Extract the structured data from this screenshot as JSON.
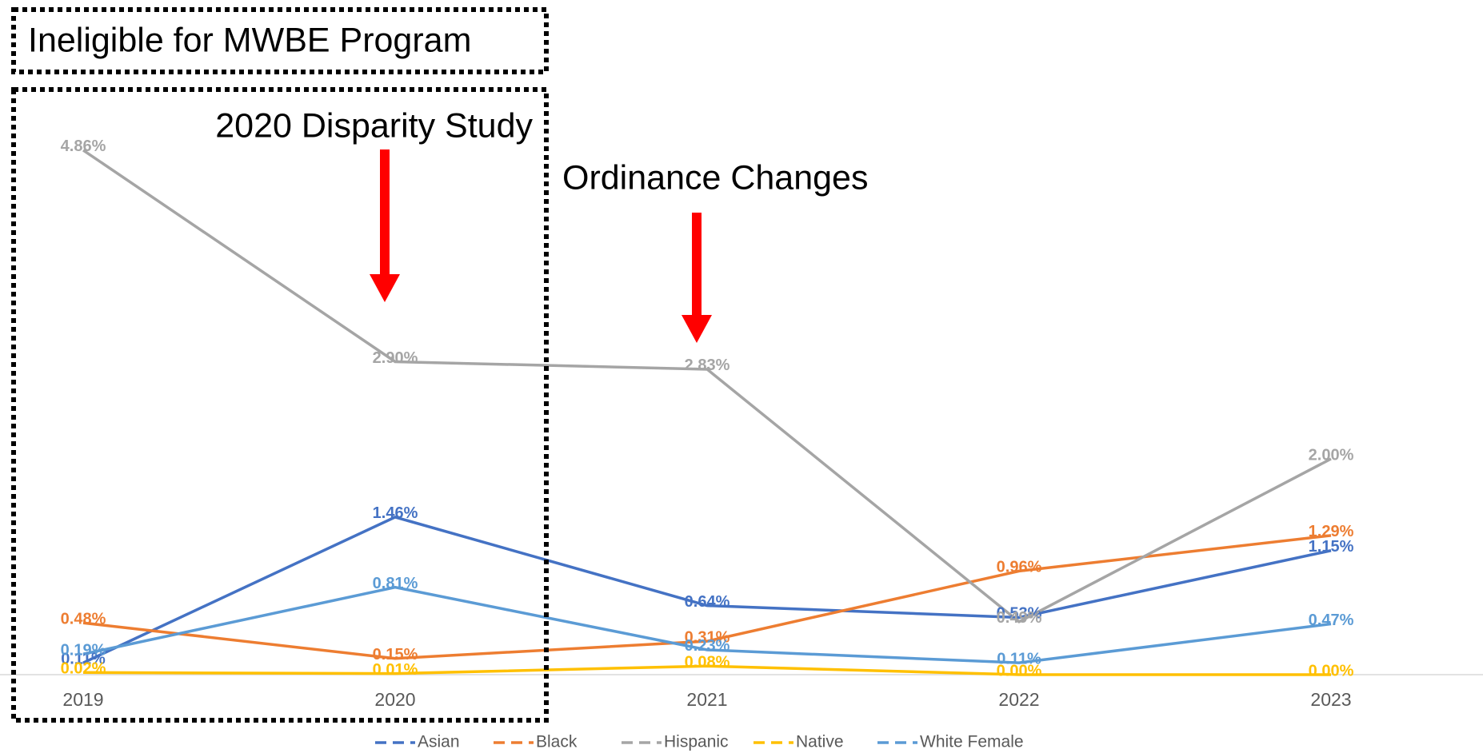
{
  "chart_data": {
    "type": "line",
    "annotations": [
      "Ineligible for MWBE Program",
      "2020 Disparity Study",
      "Ordinance Changes"
    ],
    "categories": [
      "2019",
      "2020",
      "2021",
      "2022",
      "2023"
    ],
    "ylim": [
      0,
      5
    ],
    "legend": "bottom",
    "series": [
      {
        "name": "Asian",
        "color": "#4472c4",
        "values": [
          0.11,
          1.46,
          0.64,
          0.53,
          1.15
        ],
        "value_labels": [
          "0.11%",
          "1.46%",
          "0.64%",
          "0.53%",
          "1.15%"
        ]
      },
      {
        "name": "Black",
        "color": "#ed7d31",
        "values": [
          0.48,
          0.15,
          0.31,
          0.96,
          1.29
        ],
        "value_labels": [
          "0.48%",
          "0.15%",
          "0.31%",
          "0.96%",
          "1.29%"
        ]
      },
      {
        "name": "Hispanic",
        "color": "#a5a5a5",
        "values": [
          4.86,
          2.9,
          2.83,
          0.49,
          2.0
        ],
        "value_labels": [
          "4.86%",
          "2.90%",
          "2.83%",
          "0.49%",
          "2.00%"
        ]
      },
      {
        "name": "Native",
        "color": "#ffc000",
        "values": [
          0.02,
          0.01,
          0.08,
          0.0,
          0.0
        ],
        "value_labels": [
          "0.02%",
          "0.01%",
          "0.08%",
          "0.00%",
          "0.00%"
        ]
      },
      {
        "name": "White Female",
        "color": "#5b9bd5",
        "values": [
          0.19,
          0.81,
          0.23,
          0.11,
          0.47
        ],
        "value_labels": [
          "0.19%",
          "0.81%",
          "0.23%",
          "0.11%",
          "0.47%"
        ]
      }
    ]
  }
}
